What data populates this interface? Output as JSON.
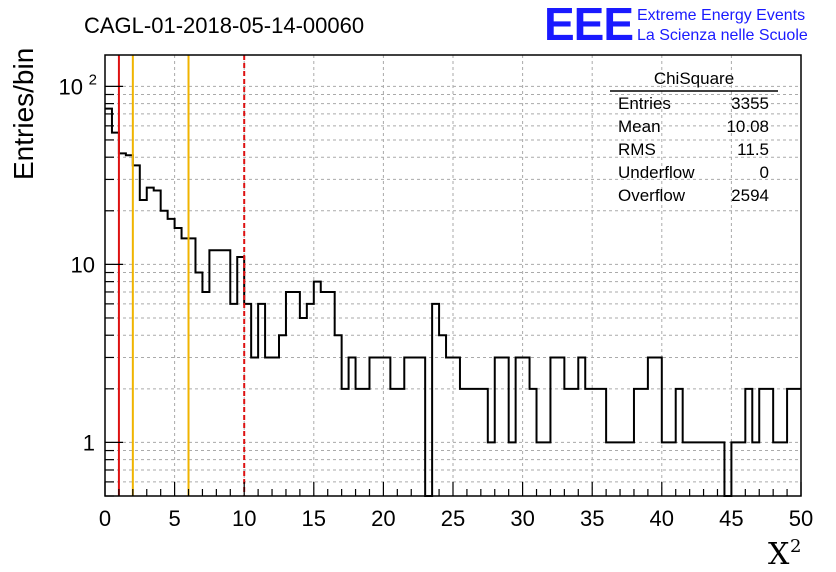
{
  "chart_data": {
    "type": "histogram",
    "title": "CAGL-01-2018-05-14-00060",
    "xlabel": "X",
    "xlabel_superscript": "2",
    "ylabel": "Entries/bin",
    "x_range": [
      0,
      50
    ],
    "y_range": [
      0.5,
      150
    ],
    "y_scale": "log",
    "grid": true,
    "x_ticks": [
      "0",
      "5",
      "10",
      "15",
      "20",
      "25",
      "30",
      "35",
      "40",
      "45",
      "50"
    ],
    "y_ticks": [
      {
        "value": 1,
        "label": "1"
      },
      {
        "value": 10,
        "label": "10"
      },
      {
        "value": 100,
        "label": "10",
        "sup": "2"
      }
    ],
    "bin_width": 0.5,
    "bin_start": 0,
    "values": [
      75,
      55,
      42,
      41,
      36,
      23,
      27,
      26,
      20,
      18,
      16,
      14,
      14,
      9,
      7,
      12,
      12,
      12,
      6,
      11,
      6,
      3,
      6,
      3,
      3,
      4,
      7,
      7,
      5,
      6,
      8,
      7,
      7,
      4,
      2,
      3,
      2,
      2,
      3,
      3,
      3,
      2,
      2,
      3,
      3,
      3,
      0.5,
      6,
      4,
      3,
      3,
      2,
      2,
      2,
      2,
      1,
      3,
      3,
      1,
      3,
      3,
      2,
      1,
      1,
      3,
      3,
      2,
      2,
      3,
      2,
      2,
      2,
      1,
      1,
      1,
      1,
      2,
      2,
      3,
      3,
      1,
      1,
      2,
      1,
      1,
      1,
      1,
      1,
      1,
      0.5,
      1,
      1,
      2,
      1,
      2,
      2,
      1,
      1,
      2,
      2
    ],
    "vertical_lines": [
      {
        "x": 1,
        "color": "#dd1111",
        "style": "solid"
      },
      {
        "x": 2,
        "color": "#f0b400",
        "style": "solid"
      },
      {
        "x": 6,
        "color": "#f0b400",
        "style": "solid"
      },
      {
        "x": 10,
        "color": "#dd1111",
        "style": "dashed"
      }
    ]
  },
  "stats_box": {
    "title": "ChiSquare",
    "rows": [
      {
        "label": "Entries",
        "value": "3355"
      },
      {
        "label": "Mean",
        "value": "10.08"
      },
      {
        "label": "RMS",
        "value": "11.5"
      },
      {
        "label": "Underflow",
        "value": "0"
      },
      {
        "label": "Overflow",
        "value": "2594"
      }
    ]
  },
  "logo": {
    "acronym": "EEE",
    "line1": "Extreme Energy Events",
    "line2": "La Scienza nelle Scuole"
  },
  "colors": {
    "logo_blue": "#1a1aff",
    "grid": "#aaaaaa"
  }
}
